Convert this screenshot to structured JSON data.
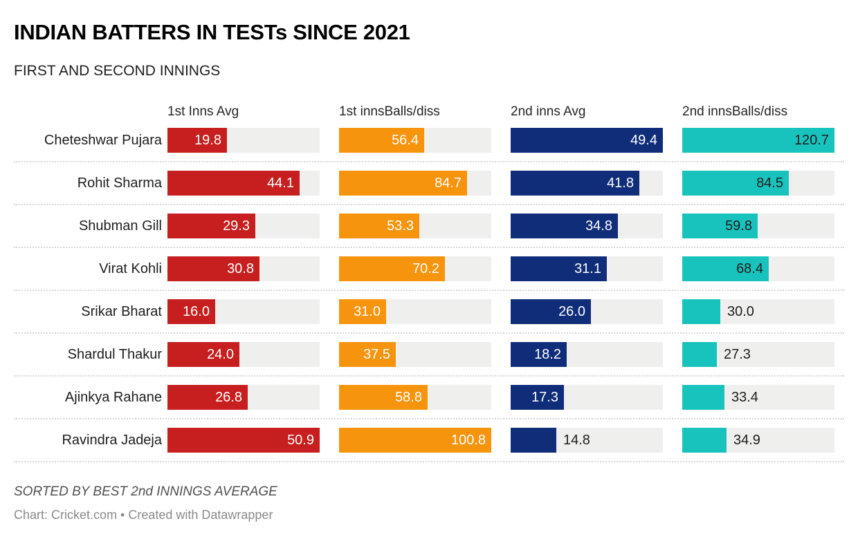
{
  "title": "INDIAN BATTERS IN TESTs SINCE 2021",
  "subtitle": "FIRST AND SECOND INNINGS",
  "footer": {
    "note": "SORTED BY BEST 2nd INNINGS AVERAGE",
    "byline": "Chart: Cricket.com • Created with Datawrapper"
  },
  "colors": {
    "bar_red": "#c71f1f",
    "bar_orange": "#f7940d",
    "bar_navy": "#102d7a",
    "bar_teal": "#19c3bd",
    "track": "#efefee",
    "separator": "#d6d6d6",
    "value_dark": "#1d1d1d",
    "value_light": "#ffffff"
  },
  "chart_data": {
    "type": "bar",
    "orientation": "horizontal",
    "title": "INDIAN BATTERS IN TESTs SINCE 2021",
    "subtitle": "FIRST AND SECOND INNINGS",
    "grid": false,
    "legend_position": "column-headers",
    "sorted_by": "Best 2nd innings average (descending)",
    "categories": [
      "Cheteshwar Pujara",
      "Rohit Sharma",
      "Shubman Gill",
      "Virat Kohli",
      "Srikar Bharat",
      "Shardul Thakur",
      "Ajinkya Rahane",
      "Ravindra Jadeja"
    ],
    "columns": [
      {
        "label": "1st Inns Avg",
        "color": "#c71f1f",
        "text_color": "#ffffff",
        "axis_min": 0,
        "axis_max": 50.9
      },
      {
        "label": "1st innsBalls/diss",
        "color": "#f7940d",
        "text_color": "#ffffff",
        "axis_min": 0,
        "axis_max": 100.8
      },
      {
        "label": "2nd inns Avg",
        "color": "#102d7a",
        "text_color": "#ffffff",
        "axis_min": 0,
        "axis_max": 49.4
      },
      {
        "label": "2nd innsBalls/diss",
        "color": "#19c3bd",
        "text_color": "#1d1d1d",
        "axis_min": 0,
        "axis_max": 120.7
      }
    ],
    "series": [
      {
        "name": "1st Inns Avg",
        "values": [
          19.8,
          44.1,
          29.3,
          30.8,
          16.0,
          24.0,
          26.8,
          50.9
        ]
      },
      {
        "name": "1st innsBalls/diss",
        "values": [
          56.4,
          84.7,
          53.3,
          70.2,
          31.0,
          37.5,
          58.8,
          100.8
        ]
      },
      {
        "name": "2nd inns Avg",
        "values": [
          49.4,
          41.8,
          34.8,
          31.1,
          26.0,
          18.2,
          17.3,
          14.8
        ]
      },
      {
        "name": "2nd innsBalls/diss",
        "values": [
          120.7,
          84.5,
          59.8,
          68.4,
          30.0,
          27.3,
          33.4,
          34.9
        ]
      }
    ],
    "rows": [
      {
        "player": "Cheteshwar Pujara",
        "values": [
          "19.8",
          "56.4",
          "49.4",
          "120.7"
        ]
      },
      {
        "player": "Rohit Sharma",
        "values": [
          "44.1",
          "84.7",
          "41.8",
          "84.5"
        ]
      },
      {
        "player": "Shubman Gill",
        "values": [
          "29.3",
          "53.3",
          "34.8",
          "59.8"
        ]
      },
      {
        "player": "Virat Kohli",
        "values": [
          "30.8",
          "70.2",
          "31.1",
          "68.4"
        ]
      },
      {
        "player": "Srikar Bharat",
        "values": [
          "16.0",
          "31.0",
          "26.0",
          "30.0"
        ]
      },
      {
        "player": "Shardul Thakur",
        "values": [
          "24.0",
          "37.5",
          "18.2",
          "27.3"
        ]
      },
      {
        "player": "Ajinkya Rahane",
        "values": [
          "26.8",
          "58.8",
          "17.3",
          "33.4"
        ]
      },
      {
        "player": "Ravindra Jadeja",
        "values": [
          "50.9",
          "100.8",
          "14.8",
          "34.9"
        ]
      }
    ]
  }
}
